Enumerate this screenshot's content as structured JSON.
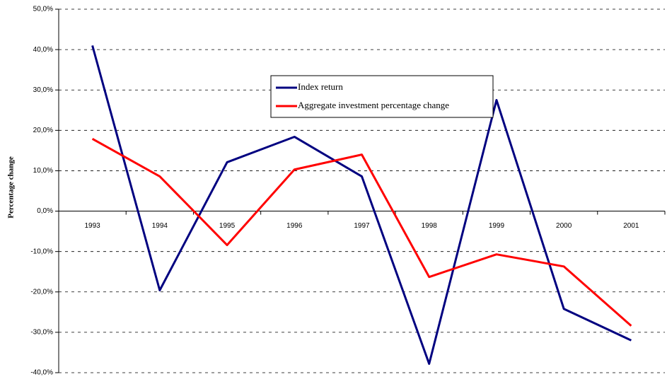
{
  "chart_data": {
    "type": "line",
    "y_label": "Percentage change",
    "categories": [
      "1993",
      "1994",
      "1995",
      "1996",
      "1997",
      "1998",
      "1999",
      "2000",
      "2001"
    ],
    "series": [
      {
        "name": "Index return",
        "color": "#000080",
        "values": [
          41.0,
          -19.6,
          12.1,
          18.4,
          8.6,
          -37.8,
          27.5,
          -24.2,
          -32.0
        ]
      },
      {
        "name": "Aggregate investment percentage change",
        "color": "#ff0000",
        "values": [
          17.9,
          8.6,
          -8.4,
          10.3,
          14.0,
          -16.3,
          -10.7,
          -13.7,
          -28.4
        ]
      }
    ],
    "ylim": [
      -40,
      50
    ],
    "yticks": [
      {
        "value": -40,
        "label": "-40,0%"
      },
      {
        "value": -30,
        "label": "-30,0%"
      },
      {
        "value": -20,
        "label": "-20,0%"
      },
      {
        "value": -10,
        "label": "-10,0%"
      },
      {
        "value": 0,
        "label": "0,0%"
      },
      {
        "value": 10,
        "label": "10,0%"
      },
      {
        "value": 20,
        "label": "20,0%"
      },
      {
        "value": 30,
        "label": "30,0%"
      },
      {
        "value": 40,
        "label": "40,0%"
      },
      {
        "value": 50,
        "label": "50,0%"
      }
    ],
    "grid": true
  }
}
